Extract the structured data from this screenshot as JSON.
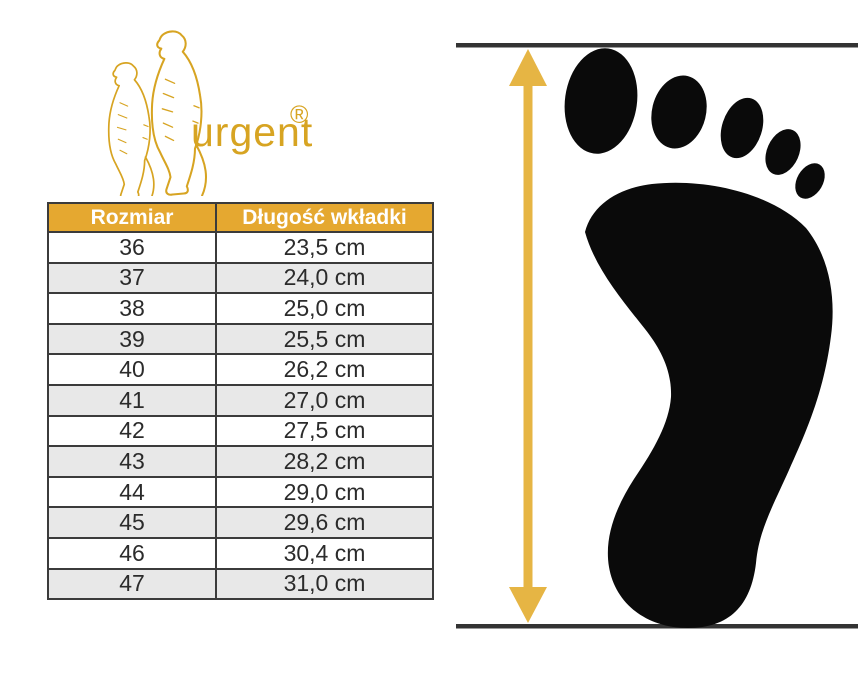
{
  "brand": {
    "name": "urgent",
    "registered_mark": "®",
    "logo_icon": "meerkats-icon"
  },
  "table": {
    "columns": [
      "Rozmiar",
      "Długość wkładki"
    ],
    "rows": [
      {
        "size": "36",
        "length": "23,5 cm"
      },
      {
        "size": "37",
        "length": "24,0 cm"
      },
      {
        "size": "38",
        "length": "25,0 cm"
      },
      {
        "size": "39",
        "length": "25,5 cm"
      },
      {
        "size": "40",
        "length": "26,2 cm"
      },
      {
        "size": "41",
        "length": "27,0 cm"
      },
      {
        "size": "42",
        "length": "27,5 cm"
      },
      {
        "size": "43",
        "length": "28,2 cm"
      },
      {
        "size": "44",
        "length": "29,0 cm"
      },
      {
        "size": "45",
        "length": "29,6 cm"
      },
      {
        "size": "46",
        "length": "30,4 cm"
      },
      {
        "size": "47",
        "length": "31,0 cm"
      }
    ]
  },
  "chart_data": {
    "type": "table",
    "columns": [
      "Rozmiar",
      "Długość wkładki"
    ],
    "rows": [
      [
        "36",
        "23,5 cm"
      ],
      [
        "37",
        "24,0 cm"
      ],
      [
        "38",
        "25,0 cm"
      ],
      [
        "39",
        "25,5 cm"
      ],
      [
        "40",
        "26,2 cm"
      ],
      [
        "41",
        "27,0 cm"
      ],
      [
        "42",
        "27,5 cm"
      ],
      [
        "43",
        "28,2 cm"
      ],
      [
        "44",
        "29,0 cm"
      ],
      [
        "45",
        "29,6 cm"
      ],
      [
        "46",
        "30,4 cm"
      ],
      [
        "47",
        "31,0 cm"
      ]
    ],
    "legend": "none",
    "notes": "Shoe size vs insole length chart; right side shows a black footprint between two horizontal measurement lines with a vertical double-headed gold arrow indicating the measured length"
  },
  "icons": {
    "logo": "meerkats-icon",
    "diagram": [
      "footprint-icon",
      "measure-arrow-icon",
      "top-measure-line",
      "bottom-measure-line"
    ]
  },
  "colors": {
    "header_gold": "#E5A830",
    "logo_gold": "#D7A422",
    "arrow_gold": "#E6B544",
    "row_alt_gray": "#E8E8E8",
    "table_border": "#3B3B3B",
    "measure_line": "#333333",
    "footprint_black": "#0A0A0A",
    "header_text": "#FFFFFF",
    "cell_text": "#2B2B2B"
  }
}
